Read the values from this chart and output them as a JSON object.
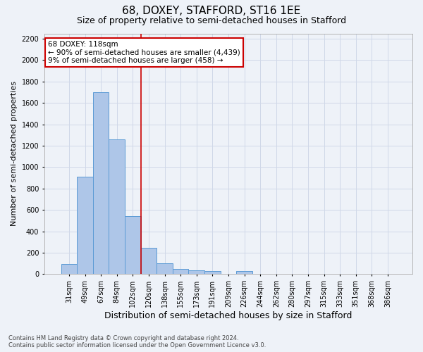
{
  "title": "68, DOXEY, STAFFORD, ST16 1EE",
  "subtitle": "Size of property relative to semi-detached houses in Stafford",
  "xlabel": "Distribution of semi-detached houses by size in Stafford",
  "ylabel": "Number of semi-detached properties",
  "categories": [
    "31sqm",
    "49sqm",
    "67sqm",
    "84sqm",
    "102sqm",
    "120sqm",
    "138sqm",
    "155sqm",
    "173sqm",
    "191sqm",
    "209sqm",
    "226sqm",
    "244sqm",
    "262sqm",
    "280sqm",
    "297sqm",
    "315sqm",
    "333sqm",
    "351sqm",
    "368sqm",
    "386sqm"
  ],
  "values": [
    97,
    910,
    1700,
    1260,
    540,
    245,
    103,
    52,
    35,
    28,
    0,
    27,
    0,
    0,
    0,
    0,
    0,
    0,
    0,
    0,
    0
  ],
  "bar_color": "#aec6e8",
  "bar_edge_color": "#5b9bd5",
  "grid_color": "#d0d8e8",
  "background_color": "#eef2f8",
  "vline_x": 4.5,
  "vline_color": "#cc0000",
  "annotation_line1": "68 DOXEY: 118sqm",
  "annotation_line2": "← 90% of semi-detached houses are smaller (4,439)",
  "annotation_line3": "9% of semi-detached houses are larger (458) →",
  "annotation_box_color": "#ffffff",
  "annotation_box_edge": "#cc0000",
  "ylim": [
    0,
    2250
  ],
  "yticks": [
    0,
    200,
    400,
    600,
    800,
    1000,
    1200,
    1400,
    1600,
    1800,
    2000,
    2200
  ],
  "footer": "Contains HM Land Registry data © Crown copyright and database right 2024.\nContains public sector information licensed under the Open Government Licence v3.0.",
  "title_fontsize": 11,
  "subtitle_fontsize": 9,
  "ylabel_fontsize": 8,
  "xlabel_fontsize": 9,
  "tick_fontsize": 7,
  "annot_fontsize": 7.5,
  "footer_fontsize": 6
}
